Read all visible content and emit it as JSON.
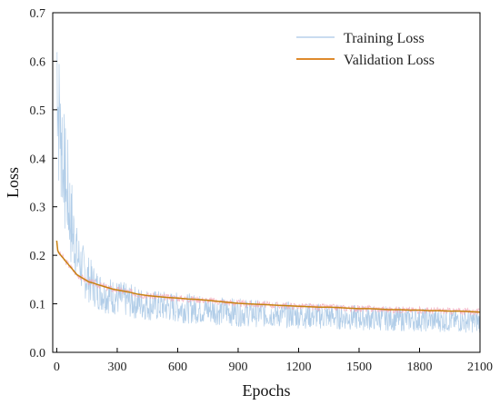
{
  "chart_data": {
    "type": "line",
    "xlabel": "Epochs",
    "ylabel": "Loss",
    "xlim": [
      -20,
      2100
    ],
    "ylim": [
      0,
      0.7
    ],
    "xticks": [
      0,
      300,
      600,
      900,
      1200,
      1500,
      1800,
      2100
    ],
    "yticks": [
      0.0,
      0.1,
      0.2,
      0.3,
      0.4,
      0.5,
      0.6,
      0.7
    ],
    "xtick_labels": [
      "0",
      "300",
      "600",
      "900",
      "1200",
      "1500",
      "1800",
      "2100"
    ],
    "ytick_labels": [
      "0.0",
      "0.1",
      "0.2",
      "0.3",
      "0.4",
      "0.5",
      "0.6",
      "0.7"
    ],
    "grid": false,
    "legend_position": "top-right",
    "series": [
      {
        "name": "Training Loss",
        "color": "#a9c8e6",
        "x": [
          0,
          5,
          10,
          15,
          20,
          25,
          30,
          35,
          40,
          45,
          50,
          55,
          60,
          65,
          70,
          75,
          80,
          85,
          90,
          95,
          100,
          110,
          120,
          130,
          140,
          150,
          160,
          170,
          180,
          190,
          200,
          220,
          240,
          260,
          280,
          300,
          320,
          340,
          360,
          380,
          400,
          430,
          460,
          490,
          520,
          550,
          580,
          610,
          640,
          670,
          700,
          730,
          760,
          790,
          820,
          850,
          880,
          910,
          940,
          970,
          1000,
          1030,
          1060,
          1090,
          1120,
          1150,
          1180,
          1210,
          1240,
          1270,
          1300,
          1330,
          1360,
          1390,
          1420,
          1450,
          1480,
          1510,
          1540,
          1570,
          1600,
          1630,
          1660,
          1690,
          1720,
          1750,
          1780,
          1810,
          1840,
          1870,
          1900,
          1930,
          1960,
          1990,
          2020,
          2050,
          2080,
          2100
        ],
        "y": [
          0.62,
          0.55,
          0.47,
          0.52,
          0.4,
          0.48,
          0.36,
          0.42,
          0.33,
          0.38,
          0.3,
          0.34,
          0.28,
          0.3,
          0.25,
          0.28,
          0.23,
          0.25,
          0.21,
          0.23,
          0.2,
          0.19,
          0.18,
          0.17,
          0.16,
          0.155,
          0.15,
          0.145,
          0.14,
          0.135,
          0.13,
          0.125,
          0.12,
          0.118,
          0.115,
          0.112,
          0.11,
          0.108,
          0.106,
          0.104,
          0.102,
          0.1,
          0.098,
          0.096,
          0.095,
          0.094,
          0.093,
          0.092,
          0.091,
          0.09,
          0.089,
          0.088,
          0.087,
          0.086,
          0.085,
          0.084,
          0.083,
          0.082,
          0.082,
          0.081,
          0.08,
          0.079,
          0.079,
          0.078,
          0.078,
          0.077,
          0.077,
          0.076,
          0.076,
          0.075,
          0.075,
          0.074,
          0.074,
          0.073,
          0.073,
          0.072,
          0.072,
          0.071,
          0.071,
          0.07,
          0.07,
          0.07,
          0.069,
          0.069,
          0.068,
          0.068,
          0.068,
          0.067,
          0.067,
          0.066,
          0.066,
          0.066,
          0.065,
          0.065,
          0.065,
          0.064,
          0.064,
          0.064
        ]
      },
      {
        "name": "Validation Loss",
        "color": "#d97a0e",
        "x": [
          0,
          5,
          10,
          20,
          30,
          40,
          50,
          60,
          70,
          80,
          90,
          100,
          120,
          140,
          160,
          180,
          200,
          240,
          280,
          320,
          360,
          400,
          450,
          500,
          550,
          600,
          650,
          700,
          750,
          800,
          850,
          900,
          950,
          1000,
          1050,
          1100,
          1150,
          1200,
          1250,
          1300,
          1350,
          1400,
          1450,
          1500,
          1550,
          1600,
          1650,
          1700,
          1750,
          1800,
          1850,
          1900,
          1950,
          2000,
          2050,
          2100
        ],
        "y": [
          0.23,
          0.21,
          0.205,
          0.2,
          0.195,
          0.19,
          0.185,
          0.18,
          0.175,
          0.17,
          0.165,
          0.16,
          0.155,
          0.15,
          0.145,
          0.143,
          0.14,
          0.135,
          0.13,
          0.127,
          0.124,
          0.12,
          0.117,
          0.115,
          0.113,
          0.112,
          0.11,
          0.109,
          0.107,
          0.105,
          0.103,
          0.101,
          0.1,
          0.099,
          0.098,
          0.097,
          0.096,
          0.095,
          0.094,
          0.093,
          0.093,
          0.092,
          0.091,
          0.09,
          0.09,
          0.089,
          0.088,
          0.088,
          0.087,
          0.087,
          0.086,
          0.086,
          0.085,
          0.085,
          0.084,
          0.083
        ]
      }
    ]
  }
}
